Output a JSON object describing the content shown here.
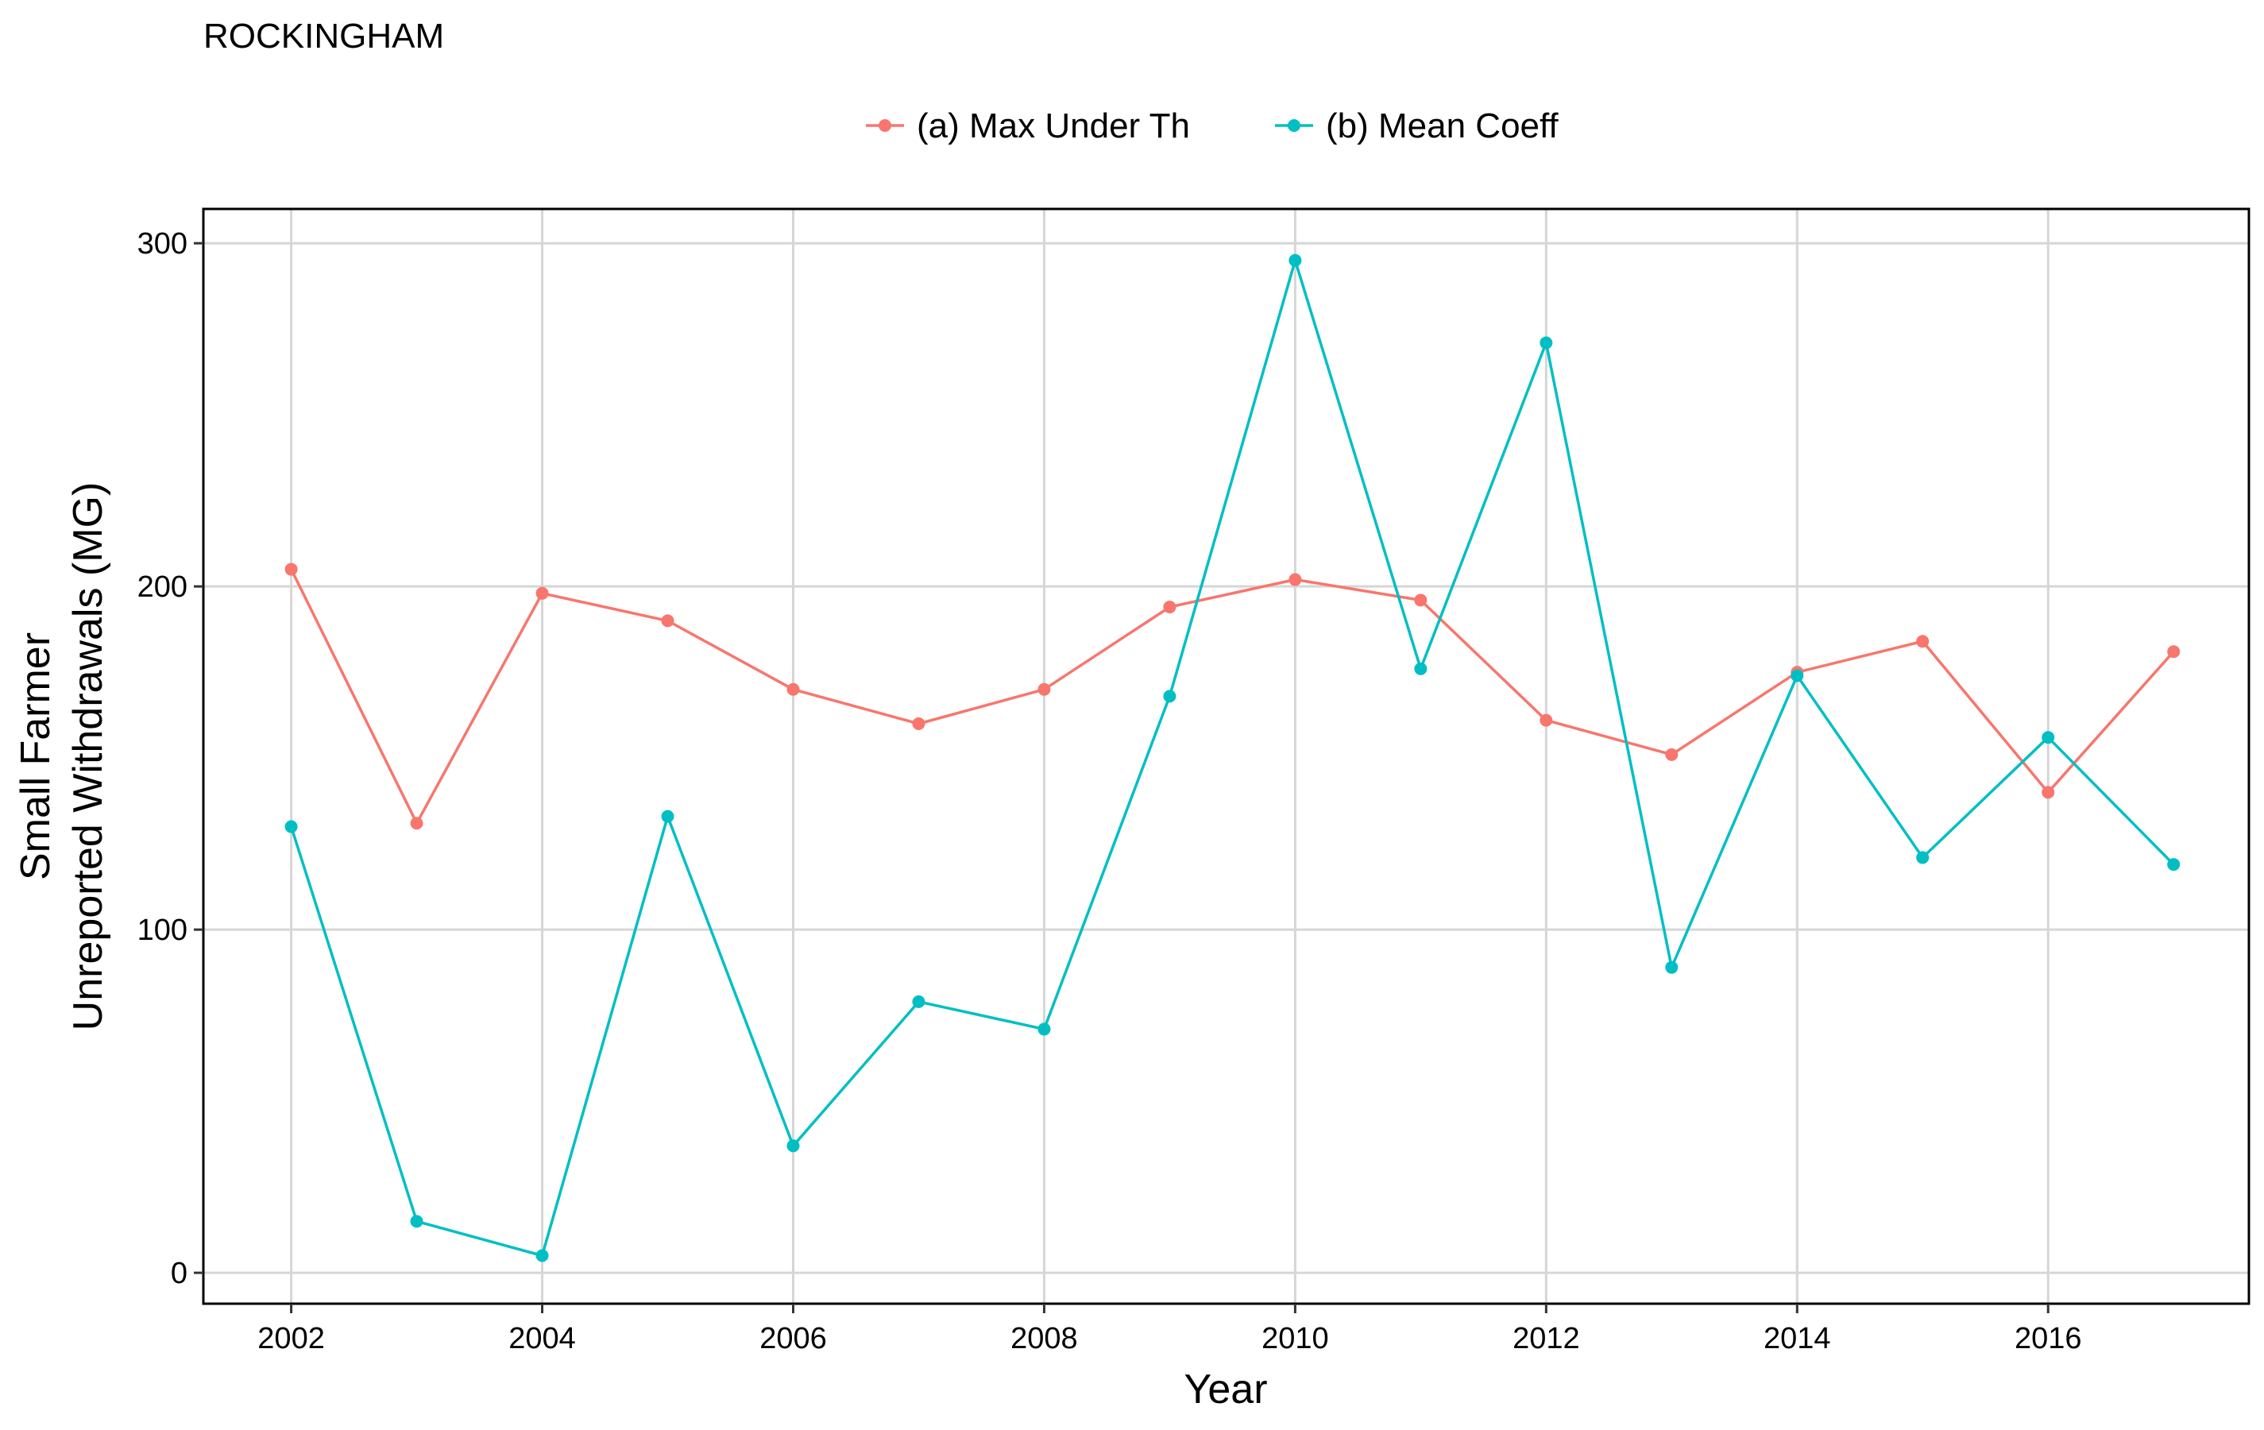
{
  "chart_data": {
    "type": "line",
    "title": "ROCKINGHAM",
    "xlabel": "Year",
    "ylabel_lines": [
      "Small Farmer",
      "Unreported Withdrawals (MG)"
    ],
    "xlim": [
      2001.3,
      2017.6
    ],
    "ylim": [
      -9,
      310
    ],
    "x_ticks": [
      2002,
      2004,
      2006,
      2008,
      2010,
      2012,
      2014,
      2016
    ],
    "y_ticks": [
      0,
      100,
      200,
      300
    ],
    "grid": true,
    "legend_position": "top",
    "x": [
      2002,
      2003,
      2004,
      2005,
      2006,
      2007,
      2008,
      2009,
      2010,
      2011,
      2012,
      2013,
      2014,
      2015,
      2016,
      2017
    ],
    "series": [
      {
        "name": "(a) Max Under Th",
        "color": "#F8766D",
        "values": [
          205,
          131,
          198,
          190,
          170,
          160,
          170,
          194,
          202,
          196,
          161,
          151,
          175,
          184,
          140,
          181
        ]
      },
      {
        "name": "(b) Mean Coeff",
        "color": "#00BFC4",
        "values": [
          130,
          15,
          5,
          133,
          37,
          79,
          71,
          168,
          295,
          176,
          271,
          89,
          174,
          121,
          156,
          119
        ]
      }
    ]
  }
}
